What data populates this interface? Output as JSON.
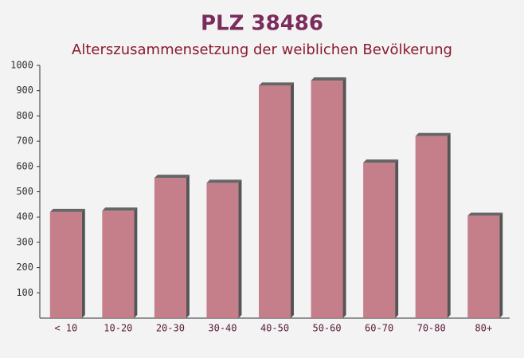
{
  "chart_data": {
    "type": "bar",
    "title": "PLZ 38486",
    "subtitle": "Alterszusammensetzung der weiblichen Bevölkerung",
    "categories": [
      "< 10",
      "10-20",
      "20-30",
      "30-40",
      "40-50",
      "50-60",
      "60-70",
      "70-80",
      "80+"
    ],
    "values": [
      420,
      425,
      555,
      535,
      920,
      940,
      615,
      720,
      405
    ],
    "color": "#c0727f",
    "ylim": [
      0,
      1000
    ],
    "yticks": [
      100,
      200,
      300,
      400,
      500,
      600,
      700,
      800,
      900,
      1000
    ]
  }
}
